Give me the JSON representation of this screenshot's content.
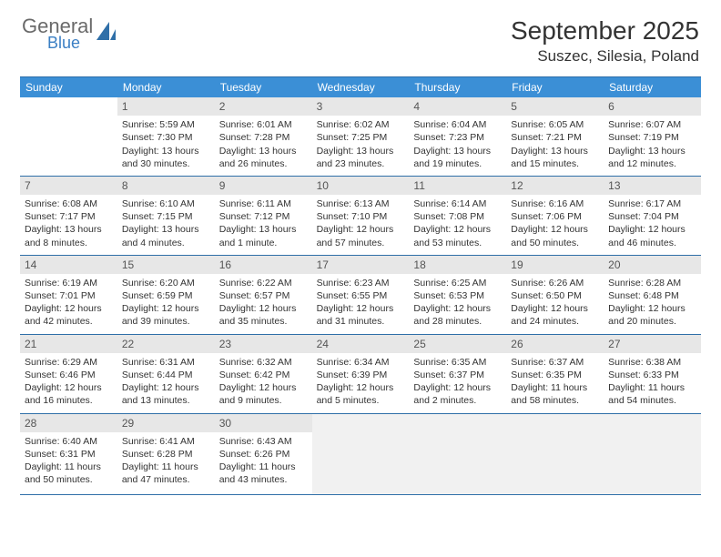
{
  "logo": {
    "general": "General",
    "blue": "Blue",
    "icon_color": "#2f6fa8"
  },
  "title": "September 2025",
  "location": "Suszec, Silesia, Poland",
  "header_bg": "#3b8fd6",
  "border_color": "#2f6fa8",
  "daynum_bg": "#e7e7e7",
  "dow": [
    "Sunday",
    "Monday",
    "Tuesday",
    "Wednesday",
    "Thursday",
    "Friday",
    "Saturday"
  ],
  "weeks": [
    [
      {
        "blank": true
      },
      {
        "num": "1",
        "sunrise": "5:59 AM",
        "sunset": "7:30 PM",
        "daylight": "13 hours and 30 minutes."
      },
      {
        "num": "2",
        "sunrise": "6:01 AM",
        "sunset": "7:28 PM",
        "daylight": "13 hours and 26 minutes."
      },
      {
        "num": "3",
        "sunrise": "6:02 AM",
        "sunset": "7:25 PM",
        "daylight": "13 hours and 23 minutes."
      },
      {
        "num": "4",
        "sunrise": "6:04 AM",
        "sunset": "7:23 PM",
        "daylight": "13 hours and 19 minutes."
      },
      {
        "num": "5",
        "sunrise": "6:05 AM",
        "sunset": "7:21 PM",
        "daylight": "13 hours and 15 minutes."
      },
      {
        "num": "6",
        "sunrise": "6:07 AM",
        "sunset": "7:19 PM",
        "daylight": "13 hours and 12 minutes."
      }
    ],
    [
      {
        "num": "7",
        "sunrise": "6:08 AM",
        "sunset": "7:17 PM",
        "daylight": "13 hours and 8 minutes."
      },
      {
        "num": "8",
        "sunrise": "6:10 AM",
        "sunset": "7:15 PM",
        "daylight": "13 hours and 4 minutes."
      },
      {
        "num": "9",
        "sunrise": "6:11 AM",
        "sunset": "7:12 PM",
        "daylight": "13 hours and 1 minute."
      },
      {
        "num": "10",
        "sunrise": "6:13 AM",
        "sunset": "7:10 PM",
        "daylight": "12 hours and 57 minutes."
      },
      {
        "num": "11",
        "sunrise": "6:14 AM",
        "sunset": "7:08 PM",
        "daylight": "12 hours and 53 minutes."
      },
      {
        "num": "12",
        "sunrise": "6:16 AM",
        "sunset": "7:06 PM",
        "daylight": "12 hours and 50 minutes."
      },
      {
        "num": "13",
        "sunrise": "6:17 AM",
        "sunset": "7:04 PM",
        "daylight": "12 hours and 46 minutes."
      }
    ],
    [
      {
        "num": "14",
        "sunrise": "6:19 AM",
        "sunset": "7:01 PM",
        "daylight": "12 hours and 42 minutes."
      },
      {
        "num": "15",
        "sunrise": "6:20 AM",
        "sunset": "6:59 PM",
        "daylight": "12 hours and 39 minutes."
      },
      {
        "num": "16",
        "sunrise": "6:22 AM",
        "sunset": "6:57 PM",
        "daylight": "12 hours and 35 minutes."
      },
      {
        "num": "17",
        "sunrise": "6:23 AM",
        "sunset": "6:55 PM",
        "daylight": "12 hours and 31 minutes."
      },
      {
        "num": "18",
        "sunrise": "6:25 AM",
        "sunset": "6:53 PM",
        "daylight": "12 hours and 28 minutes."
      },
      {
        "num": "19",
        "sunrise": "6:26 AM",
        "sunset": "6:50 PM",
        "daylight": "12 hours and 24 minutes."
      },
      {
        "num": "20",
        "sunrise": "6:28 AM",
        "sunset": "6:48 PM",
        "daylight": "12 hours and 20 minutes."
      }
    ],
    [
      {
        "num": "21",
        "sunrise": "6:29 AM",
        "sunset": "6:46 PM",
        "daylight": "12 hours and 16 minutes."
      },
      {
        "num": "22",
        "sunrise": "6:31 AM",
        "sunset": "6:44 PM",
        "daylight": "12 hours and 13 minutes."
      },
      {
        "num": "23",
        "sunrise": "6:32 AM",
        "sunset": "6:42 PM",
        "daylight": "12 hours and 9 minutes."
      },
      {
        "num": "24",
        "sunrise": "6:34 AM",
        "sunset": "6:39 PM",
        "daylight": "12 hours and 5 minutes."
      },
      {
        "num": "25",
        "sunrise": "6:35 AM",
        "sunset": "6:37 PM",
        "daylight": "12 hours and 2 minutes."
      },
      {
        "num": "26",
        "sunrise": "6:37 AM",
        "sunset": "6:35 PM",
        "daylight": "11 hours and 58 minutes."
      },
      {
        "num": "27",
        "sunrise": "6:38 AM",
        "sunset": "6:33 PM",
        "daylight": "11 hours and 54 minutes."
      }
    ],
    [
      {
        "num": "28",
        "sunrise": "6:40 AM",
        "sunset": "6:31 PM",
        "daylight": "11 hours and 50 minutes."
      },
      {
        "num": "29",
        "sunrise": "6:41 AM",
        "sunset": "6:28 PM",
        "daylight": "11 hours and 47 minutes."
      },
      {
        "num": "30",
        "sunrise": "6:43 AM",
        "sunset": "6:26 PM",
        "daylight": "11 hours and 43 minutes."
      },
      {
        "trail": true
      },
      {
        "trail": true
      },
      {
        "trail": true
      },
      {
        "trail": true
      }
    ]
  ],
  "labels": {
    "sunrise": "Sunrise: ",
    "sunset": "Sunset: ",
    "daylight": "Daylight: "
  }
}
